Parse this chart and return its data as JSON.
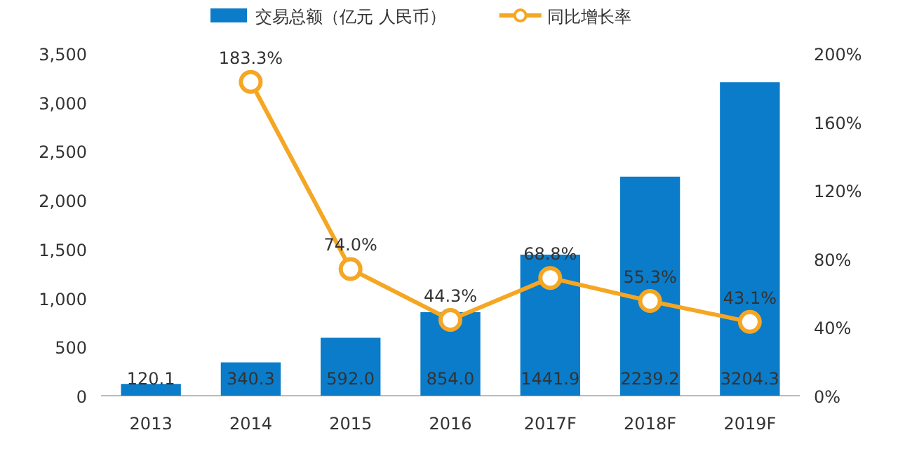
{
  "chart_data": {
    "type": "bar",
    "categories": [
      "2013",
      "2014",
      "2015",
      "2016",
      "2017F",
      "2018F",
      "2019F"
    ],
    "series": [
      {
        "name": "交易总额（亿元 人民币）",
        "color": "#0a7cc9",
        "values": [
          120.1,
          340.3,
          592.0,
          854.0,
          1441.9,
          2239.2,
          3204.3
        ],
        "value_labels": [
          "120.1",
          "340.3",
          "592.0",
          "854.0",
          "1441.9",
          "2239.2",
          "3204.3"
        ]
      },
      {
        "name": "同比增长率",
        "type": "line",
        "axis": "y2",
        "color": "#f5a623",
        "marker": "circle",
        "line_style": "solid",
        "values": [
          null,
          183.3,
          74.0,
          44.3,
          68.8,
          55.3,
          43.1
        ],
        "value_labels": [
          null,
          "183.3%",
          "74.0%",
          "44.3%",
          "68.8%",
          "55.3%",
          "43.1%"
        ]
      }
    ],
    "ylim": [
      0,
      3500
    ],
    "yticks": [
      0,
      {
        "value": 500,
        "label": "500"
      },
      {
        "value": 1000,
        "label": "1,000"
      },
      {
        "value": 1500,
        "label": "1,500"
      },
      {
        "value": 2000,
        "label": "2,000"
      },
      {
        "value": 2500,
        "label": "2,500"
      },
      {
        "value": 3000,
        "label": "3,000"
      },
      {
        "value": 3500,
        "label": "3,500"
      }
    ],
    "y2lim": [
      0,
      200
    ],
    "y2ticks": [
      {
        "value": 0,
        "label": "0%"
      },
      {
        "value": 40,
        "label": "40%"
      },
      {
        "value": 80,
        "label": "80%"
      },
      {
        "value": 120,
        "label": "120%"
      },
      {
        "value": 160,
        "label": "160%"
      },
      {
        "value": 200,
        "label": "200%"
      }
    ],
    "legend": "top",
    "grid": false
  }
}
